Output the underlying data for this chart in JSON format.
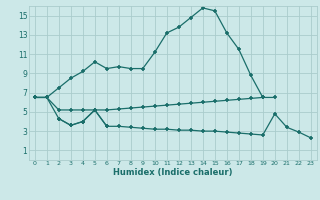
{
  "xlabel": "Humidex (Indice chaleur)",
  "bg_color": "#cce8e8",
  "grid_color": "#aacccc",
  "line_color": "#1a6e6a",
  "xlim": [
    -0.5,
    23.5
  ],
  "ylim": [
    0,
    16
  ],
  "xticks": [
    0,
    1,
    2,
    3,
    4,
    5,
    6,
    7,
    8,
    9,
    10,
    11,
    12,
    13,
    14,
    15,
    16,
    17,
    18,
    19,
    20,
    21,
    22,
    23
  ],
  "yticks": [
    1,
    3,
    5,
    7,
    9,
    11,
    13,
    15
  ],
  "series1_x": [
    0,
    1,
    2,
    3,
    4,
    5,
    6,
    7,
    8,
    9,
    10,
    11,
    12,
    13,
    14,
    15,
    16,
    17,
    18,
    19
  ],
  "series1_y": [
    6.5,
    6.5,
    7.5,
    8.5,
    9.2,
    10.2,
    9.5,
    9.7,
    9.5,
    9.5,
    11.2,
    13.2,
    13.8,
    14.8,
    15.8,
    15.5,
    13.2,
    11.5,
    8.8,
    6.5
  ],
  "series2_x": [
    0,
    1,
    2,
    3,
    4,
    5,
    6,
    7,
    8,
    9,
    10,
    11,
    12,
    13,
    14,
    15,
    16,
    17,
    18,
    19,
    20
  ],
  "series2_y": [
    6.5,
    6.5,
    5.2,
    5.2,
    5.2,
    5.2,
    5.2,
    5.3,
    5.4,
    5.5,
    5.6,
    5.7,
    5.8,
    5.9,
    6.0,
    6.1,
    6.2,
    6.3,
    6.4,
    6.5,
    6.5
  ],
  "series3_x": [
    0,
    1,
    2,
    3,
    4,
    5,
    6,
    7,
    8,
    9,
    10,
    11,
    12,
    13,
    14,
    15,
    16,
    17,
    18,
    19,
    20,
    21,
    22,
    23
  ],
  "series3_y": [
    6.5,
    6.5,
    4.3,
    3.6,
    4.0,
    5.2,
    3.5,
    3.5,
    3.4,
    3.3,
    3.2,
    3.2,
    3.1,
    3.1,
    3.0,
    3.0,
    2.9,
    2.8,
    2.7,
    2.6,
    4.8,
    3.4,
    2.9,
    2.3
  ],
  "series4_x": [
    2,
    3,
    4,
    5,
    6
  ],
  "series4_y": [
    4.3,
    3.6,
    4.0,
    5.2,
    3.5
  ]
}
